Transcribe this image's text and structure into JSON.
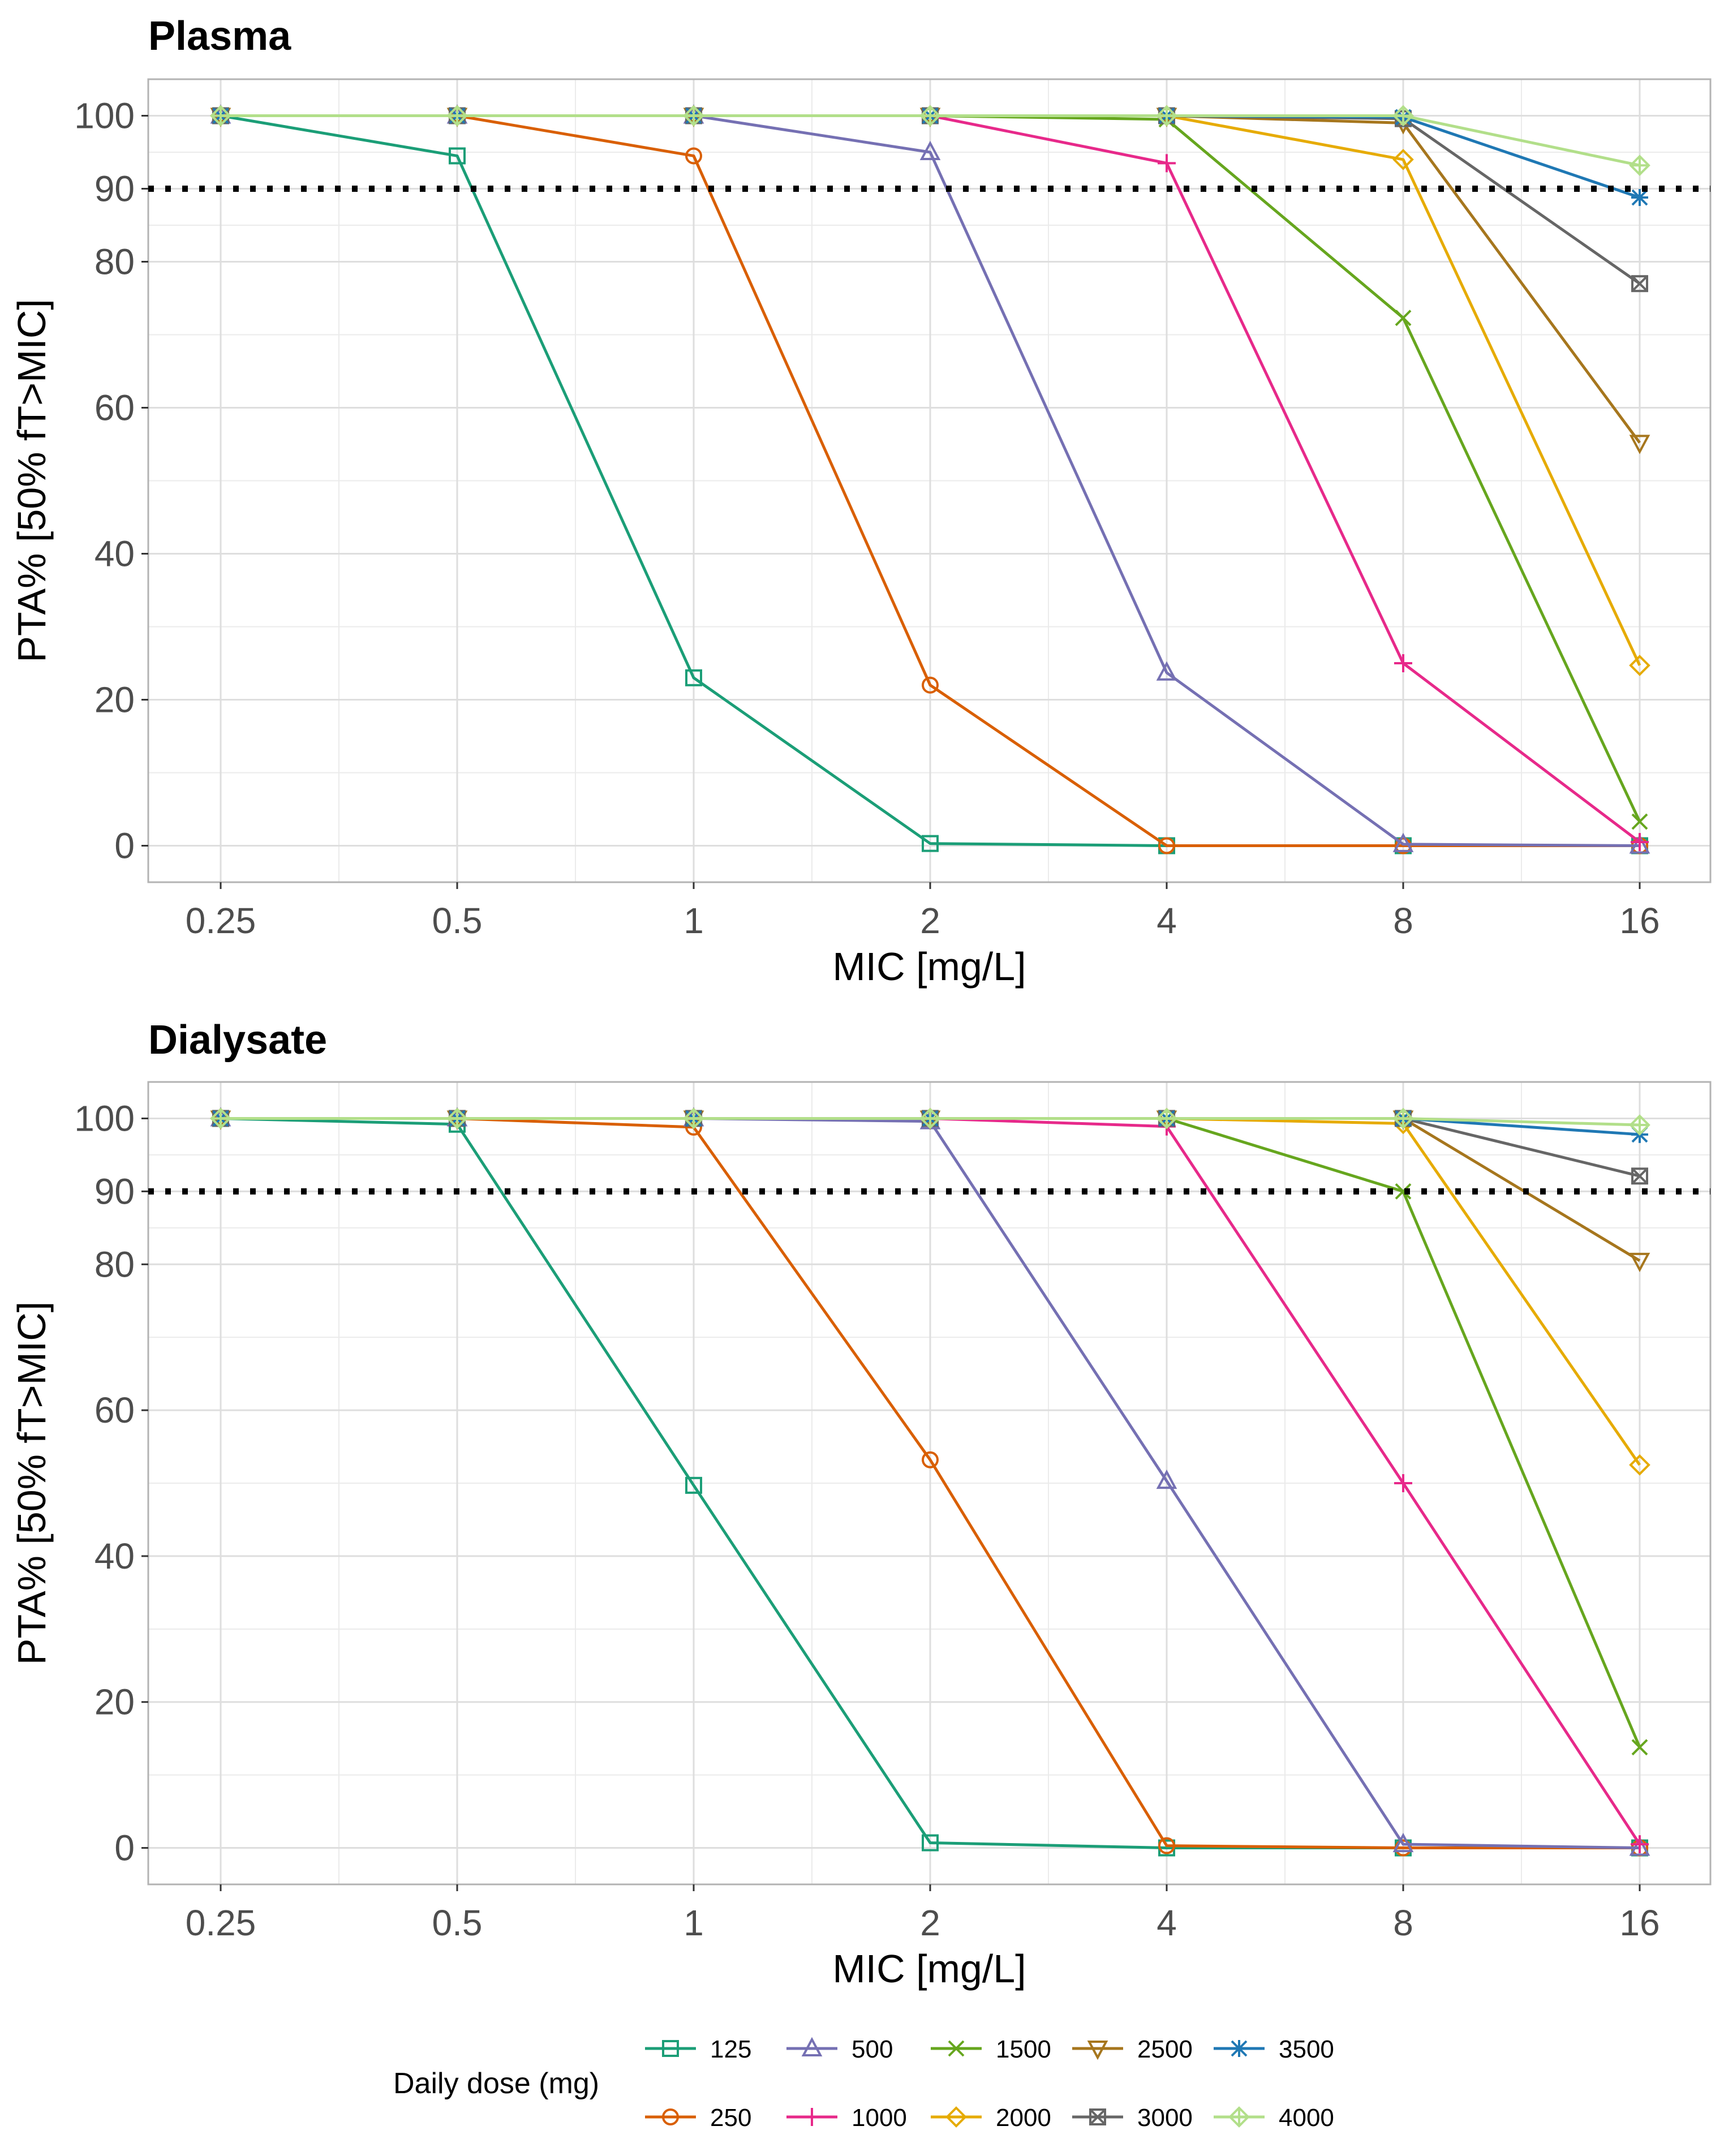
{
  "chart_data": [
    {
      "type": "line",
      "title": "Plasma",
      "xlabel": "MIC [mg/L]",
      "ylabel": "PTA% [50% fT>MIC]",
      "x": [
        "0.25",
        "0.5",
        "1",
        "2",
        "4",
        "8",
        "16"
      ],
      "x_scale": "log2",
      "ylim": [
        -5,
        105
      ],
      "yticks": [
        0,
        20,
        40,
        60,
        80,
        90,
        100
      ],
      "target_line": 90,
      "grid": true,
      "series": [
        {
          "name": "125",
          "values": [
            100,
            94.5,
            23,
            0.3,
            0,
            0,
            0
          ]
        },
        {
          "name": "250",
          "values": [
            100,
            100,
            94.5,
            22,
            0,
            0,
            0
          ]
        },
        {
          "name": "500",
          "values": [
            100,
            100,
            100,
            95,
            23.7,
            0.2,
            0
          ]
        },
        {
          "name": "1000",
          "values": [
            100,
            100,
            100,
            100,
            93.5,
            25,
            0.5
          ]
        },
        {
          "name": "1500",
          "values": [
            100,
            100,
            100,
            100,
            99.5,
            72.3,
            3.3
          ]
        },
        {
          "name": "2000",
          "values": [
            100,
            100,
            100,
            100,
            100,
            94,
            24.7
          ]
        },
        {
          "name": "2500",
          "values": [
            100,
            100,
            100,
            100,
            100,
            99,
            55.2
          ]
        },
        {
          "name": "3000",
          "values": [
            100,
            100,
            100,
            100,
            100,
            99.6,
            77
          ]
        },
        {
          "name": "3500",
          "values": [
            100,
            100,
            100,
            100,
            100,
            99.8,
            88.8
          ]
        },
        {
          "name": "4000",
          "values": [
            100,
            100,
            100,
            100,
            100,
            100,
            93.2
          ]
        }
      ]
    },
    {
      "type": "line",
      "title": "Dialysate",
      "xlabel": "MIC [mg/L]",
      "ylabel": "PTA% [50% fT>MIC]",
      "x": [
        "0.25",
        "0.5",
        "1",
        "2",
        "4",
        "8",
        "16"
      ],
      "x_scale": "log2",
      "ylim": [
        -5,
        105
      ],
      "yticks": [
        0,
        20,
        40,
        60,
        80,
        90,
        100
      ],
      "target_line": 90,
      "grid": true,
      "series": [
        {
          "name": "125",
          "values": [
            100,
            99.2,
            49.7,
            0.7,
            0,
            0,
            0
          ]
        },
        {
          "name": "250",
          "values": [
            100,
            100,
            98.8,
            53.2,
            0.3,
            0,
            0
          ]
        },
        {
          "name": "500",
          "values": [
            100,
            100,
            100,
            99.6,
            50.3,
            0.5,
            0
          ]
        },
        {
          "name": "1000",
          "values": [
            100,
            100,
            100,
            100,
            98.9,
            50,
            0.5
          ]
        },
        {
          "name": "1500",
          "values": [
            100,
            100,
            100,
            100,
            100,
            90,
            13.8
          ]
        },
        {
          "name": "2000",
          "values": [
            100,
            100,
            100,
            100,
            100,
            99.3,
            52.5
          ]
        },
        {
          "name": "2500",
          "values": [
            100,
            100,
            100,
            100,
            100,
            100,
            80.5
          ]
        },
        {
          "name": "3000",
          "values": [
            100,
            100,
            100,
            100,
            100,
            100,
            92.1
          ]
        },
        {
          "name": "3500",
          "values": [
            100,
            100,
            100,
            100,
            100,
            100,
            97.8
          ]
        },
        {
          "name": "4000",
          "values": [
            100,
            100,
            100,
            100,
            100,
            100,
            99.1
          ]
        }
      ]
    }
  ],
  "legend": {
    "title": "Daily dose (mg)",
    "position": "bottom",
    "items": [
      {
        "label": "125",
        "color": "#1b9e77",
        "shape": "square"
      },
      {
        "label": "250",
        "color": "#d95f02",
        "shape": "circle"
      },
      {
        "label": "500",
        "color": "#7570b3",
        "shape": "triangle"
      },
      {
        "label": "1000",
        "color": "#e7298a",
        "shape": "plus"
      },
      {
        "label": "1500",
        "color": "#66a61e",
        "shape": "cross"
      },
      {
        "label": "2000",
        "color": "#e6ab02",
        "shape": "diamond"
      },
      {
        "label": "2500",
        "color": "#a6761d",
        "shape": "triangle-down"
      },
      {
        "label": "3000",
        "color": "#666666",
        "shape": "square-cross"
      },
      {
        "label": "3500",
        "color": "#1f78b4",
        "shape": "asterisk"
      },
      {
        "label": "4000",
        "color": "#b2df8a",
        "shape": "diamond-plus"
      }
    ]
  }
}
